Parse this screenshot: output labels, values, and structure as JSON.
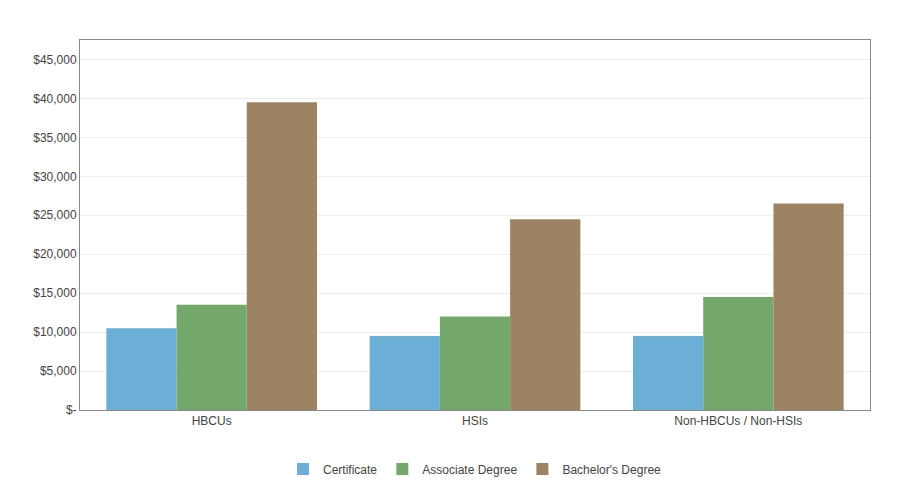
{
  "chart_data": {
    "type": "bar",
    "categories": [
      "HBCUs",
      "HSIs",
      "Non-HBCUs / Non-HSIs"
    ],
    "series": [
      {
        "name": "Certificate",
        "color": "#6baed6",
        "values": [
          10500,
          9500,
          9500
        ]
      },
      {
        "name": "Associate Degree",
        "color": "#74a96b",
        "values": [
          13500,
          12000,
          14500
        ]
      },
      {
        "name": "Bachelor's Degree",
        "color": "#9c8463",
        "values": [
          39500,
          24500,
          26500
        ]
      }
    ],
    "ylim": [
      0,
      47500
    ],
    "yticks": [
      {
        "value": 0,
        "label": "$-"
      },
      {
        "value": 5000,
        "label": "$5,000"
      },
      {
        "value": 10000,
        "label": "$10,000"
      },
      {
        "value": 15000,
        "label": "$15,000"
      },
      {
        "value": 20000,
        "label": "$20,000"
      },
      {
        "value": 25000,
        "label": "$25,000"
      },
      {
        "value": 30000,
        "label": "$30,000"
      },
      {
        "value": 35000,
        "label": "$35,000"
      },
      {
        "value": 40000,
        "label": "$40,000"
      },
      {
        "value": 45000,
        "label": "$45,000"
      }
    ],
    "grid": true,
    "legend": "bottom"
  }
}
